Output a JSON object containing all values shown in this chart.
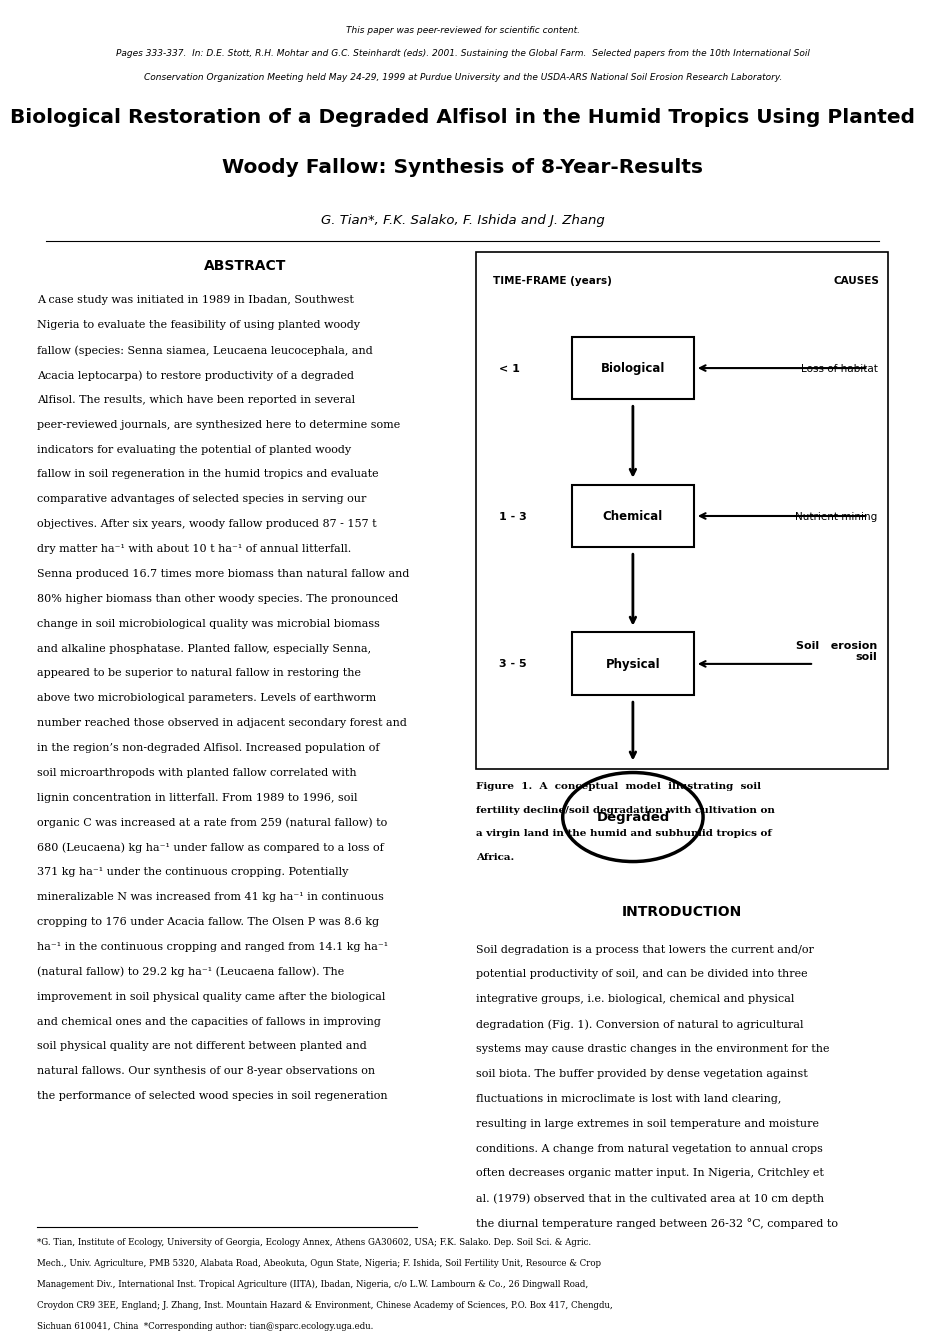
{
  "page_width": 10.2,
  "page_height": 13.2,
  "background_color": "#ffffff",
  "header_lines": [
    "This paper was peer-reviewed for scientific content.",
    "Pages 333-337.  In: D.E. Stott, R.H. Mohtar and G.C. Steinhardt (eds). 2001. Sustaining the Global Farm.  Selected papers from the 10th International Soil",
    "Conservation Organization Meeting held May 24-29, 1999 at Purdue University and the USDA-ARS National Soil Erosion Research Laboratory."
  ],
  "title_line1": "Biological Restoration of a Degraded Alfisol in the Humid Tropics Using Planted",
  "title_line2": "Woody Fallow: Synthesis of 8-Year-Results",
  "authors": "G. Tian*, F.K. Salako, F. Ishida and J. Zhang",
  "abstract_title": "ABSTRACT",
  "abstract_text": "A case study was initiated in 1989 in Ibadan, Southwest Nigeria to evaluate the feasibility of using planted woody fallow (species: Senna siamea, Leucaena leucocephala, and Acacia leptocarpa) to restore productivity of a degraded Alfisol. The results, which have been reported in several peer-reviewed journals, are synthesized here to determine some indicators for evaluating the potential of planted woody fallow in soil regeneration in the humid tropics and evaluate comparative advantages of selected species in serving our objectives. After six years, woody fallow produced 87 - 157 t dry matter ha⁻¹ with about 10 t ha⁻¹ of annual litterfall. Senna produced 16.7 times more biomass than natural fallow and 80% higher biomass than other woody species. The pronounced change in soil microbiological quality was microbial biomass and alkaline phosphatase. Planted fallow, especially Senna, appeared to be superior to natural fallow in restoring the above two microbiological parameters. Levels of earthworm number reached those observed in adjacent secondary forest and in the region’s non-degraded Alfisol. Increased population of soil microarthropods with planted fallow correlated with lignin concentration in litterfall. From 1989 to 1996, soil organic C was increased at a rate from 259 (natural fallow) to 680 (Leucaena) kg ha⁻¹ under fallow as compared to a loss of 371 kg ha⁻¹ under the continuous cropping. Potentially mineralizable N was increased from 41 kg ha⁻¹ in continuous cropping to 176 under Acacia fallow. The Olsen P was 8.6 kg ha⁻¹ in the continuous cropping and ranged from 14.1 kg ha⁻¹ (natural fallow) to 29.2 kg ha⁻¹ (Leucaena fallow). The improvement in soil physical quality came after the biological and chemical ones and the capacities of fallows in improving soil physical quality are not different between planted and natural fallows. Our synthesis of our 8-year observations on the performance of selected wood species in soil regeneration indicated all three species are promising and the choice of each species will depend on the target of soil restoration.",
  "abstract_italic_words": [
    "Senna siamea,",
    "Leucaena",
    "leucocephala,",
    "Acacia leptocarpa",
    "Senna",
    "Leucaena",
    "Acacia"
  ],
  "intro_title": "INTRODUCTION",
  "intro_text": "Soil degradation is a process that lowers the current and/or potential productivity of soil, and can be divided into three integrative groups, i.e. biological, chemical and physical degradation (Fig. 1). Conversion of natural to agricultural systems may cause drastic changes in the environment for the soil biota. The buffer provided by dense vegetation against fluctuations in microclimate is lost with land clearing, resulting in large extremes in soil temperature and moisture conditions. A change from natural vegetation to annual crops often decreases organic matter input. In Nigeria, Critchley et al. (1979) observed that in the cultivated area at 10 cm depth the diurnal temperature ranged between 26-32 °C, compared to the bush fallow where the temperature at the same depth was almost constant at 25 °C over the four days of measurement. The bush fallow showed consistently higher soil moisture content than the cultivated area throughout the year. As a result, a lower activity of the majority of the surface soil fauna was observed in the cultivated compared to the bush area.",
  "figure_caption": "Figure  1.  A  conceptual  model  illustrating  soil  fertility decline/soil degradation with cultivation on a virgin land in the humid and subhumid tropics of Africa.",
  "footnote_text": "*G. Tian, Institute of Ecology, University of Georgia, Ecology Annex, Athens GA30602, USA; F.K. Salako. Dep. Soil Sci. & Agric. Mech., Univ. Agriculture, PMB 5320, Alabata Road, Abeokuta, Ogun State, Nigeria; F. Ishida, Soil Fertility Unit, Resource & Crop Management Div., International Inst. Tropical Agriculture (IITA), Ibadan, Nigeria, c/o L.W. Lambourn & Co., 26 Dingwall Road, Croydon CR9 3EE, England; J. Zhang, Inst. Mountain Hazard & Environment, Chinese Academy of Sciences, P.O. Box 417, Chengdu, Sichuan 610041, China  *Corresponding author: tian@sparc.ecology.uga.edu.",
  "footnote_email": "tian@sparc.ecology.uga.edu"
}
